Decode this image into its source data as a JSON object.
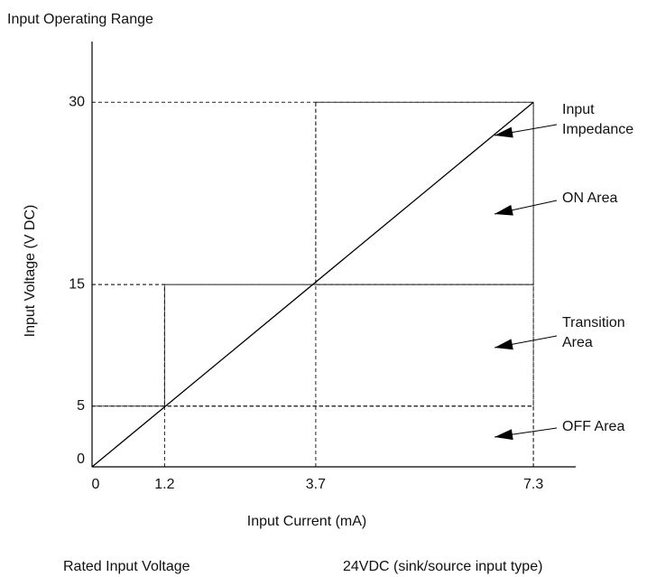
{
  "chart_data": {
    "type": "region",
    "title": "Input Operating Range",
    "x_label": "Input Current (mA)",
    "y_label": "Input Voltage (V DC)",
    "xlim": [
      0,
      8
    ],
    "ylim": [
      0,
      35
    ],
    "xticks": [
      0,
      1.2,
      3.7,
      7.3
    ],
    "yticks": [
      0,
      5,
      15,
      30
    ],
    "regions": [
      {
        "name": "OFF Area",
        "pattern": "fine",
        "x": [
          0,
          7.3
        ],
        "y": [
          0,
          5
        ]
      },
      {
        "pattern": "fine",
        "x": [
          0,
          1.2
        ],
        "y": [
          5,
          15
        ]
      },
      {
        "name": "Transition\nArea",
        "pattern": "medium",
        "x": [
          1.2,
          7.3
        ],
        "y": [
          5,
          15
        ]
      },
      {
        "name": "ON Area",
        "pattern": "heavy",
        "x": [
          3.7,
          7.3
        ],
        "y": [
          15,
          30
        ]
      }
    ],
    "line": {
      "name": "Input\nImpedance",
      "x": [
        0,
        7.3
      ],
      "y": [
        0,
        30
      ]
    },
    "footer": {
      "label": "Rated Input Voltage",
      "value": "24VDC (sink/source input type)"
    }
  }
}
